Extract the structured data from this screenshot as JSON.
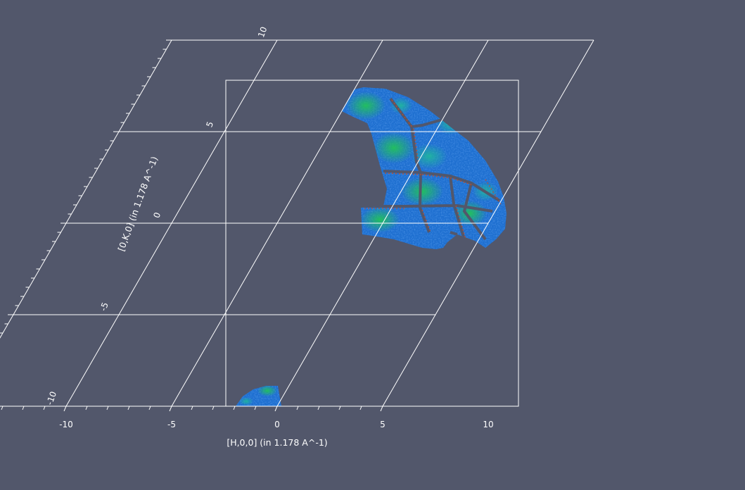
{
  "colors": {
    "background": "#52576b",
    "grid_lines": "#ffffff",
    "colormap": [
      "#0a2ab8",
      "#1a63d6",
      "#2a95d8",
      "#1fb89c",
      "#22c25a",
      "#7dd62e",
      "#e0d21e",
      "#d64a1a",
      "#b01010"
    ]
  },
  "axes": {
    "h_axis": {
      "title": "[H,0,0] (in 1.178 A^-1)",
      "ticks": [
        "-10",
        "-5",
        "0",
        "5",
        "10"
      ],
      "range": [
        -10,
        10
      ]
    },
    "k_axis": {
      "title": "[0,K,0] (in 1.178 A^-1)",
      "ticks": [
        "-10",
        "-5",
        "0",
        "5",
        "10"
      ],
      "range": [
        -10,
        10
      ]
    }
  }
}
